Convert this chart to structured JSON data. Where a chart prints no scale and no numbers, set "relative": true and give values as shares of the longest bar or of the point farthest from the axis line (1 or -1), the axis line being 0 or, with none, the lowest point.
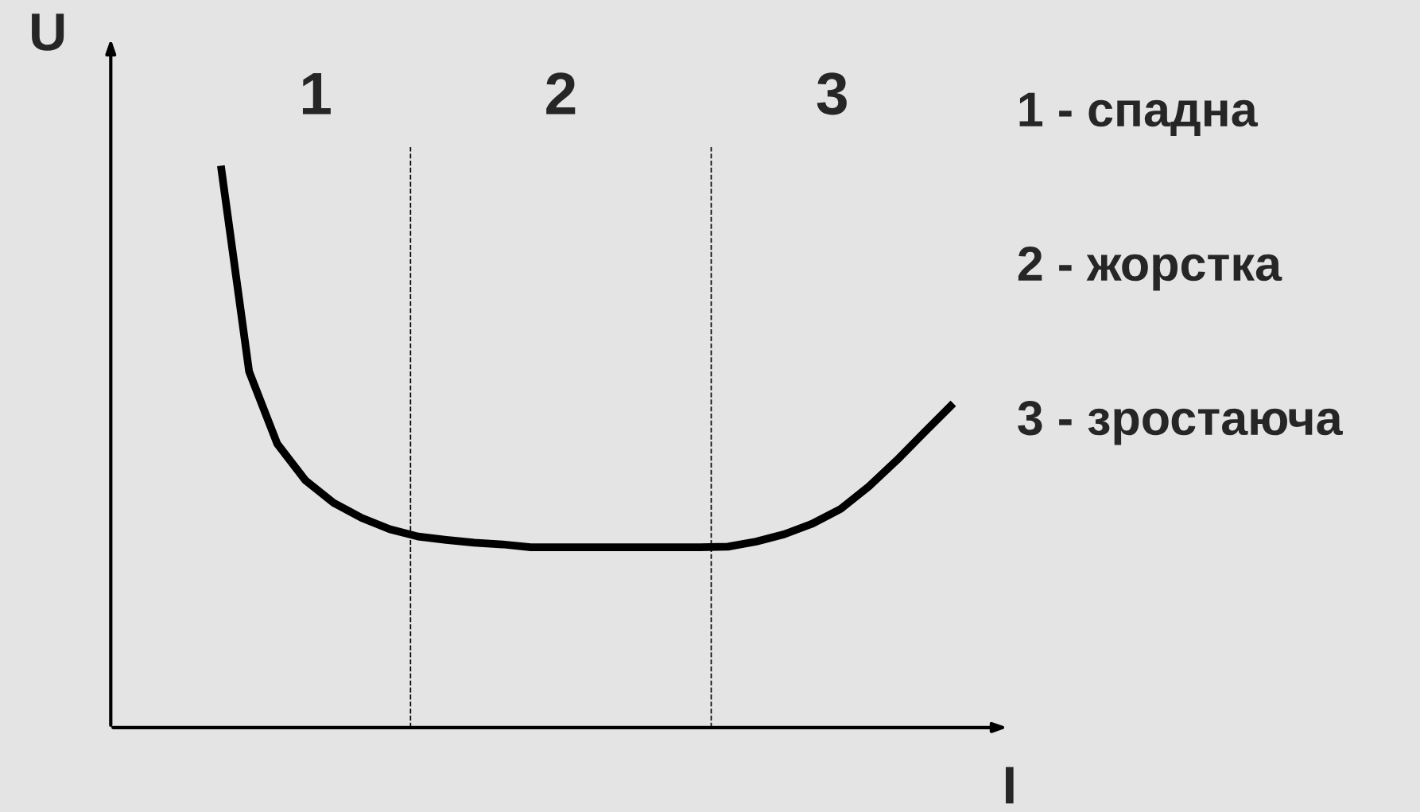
{
  "chart_data": {
    "type": "line",
    "relative": true,
    "xlabel": "I",
    "ylabel": "U",
    "categories": [
      null,
      null,
      null,
      null,
      null,
      null,
      null,
      null,
      null,
      null,
      null,
      null,
      null,
      null,
      null,
      null,
      null,
      null,
      null,
      null,
      null,
      null,
      null,
      null,
      null,
      null,
      null
    ],
    "series": [
      {
        "color": "#000000",
        "values": [
          1.0,
          0.634,
          0.505,
          0.44,
          0.4,
          0.373,
          0.353,
          0.34,
          0.334,
          0.329,
          0.326,
          0.321,
          0.321,
          0.321,
          0.321,
          0.321,
          0.321,
          0.321,
          0.322,
          0.331,
          0.344,
          0.363,
          0.389,
          0.429,
          0.476,
          0.527,
          0.577
        ]
      }
    ],
    "annotations": [
      "1",
      "2",
      "3",
      "1 - спадна",
      "2 - жорстка",
      "3 - зростаюча"
    ],
    "marker": "none",
    "line_style": "solid"
  }
}
